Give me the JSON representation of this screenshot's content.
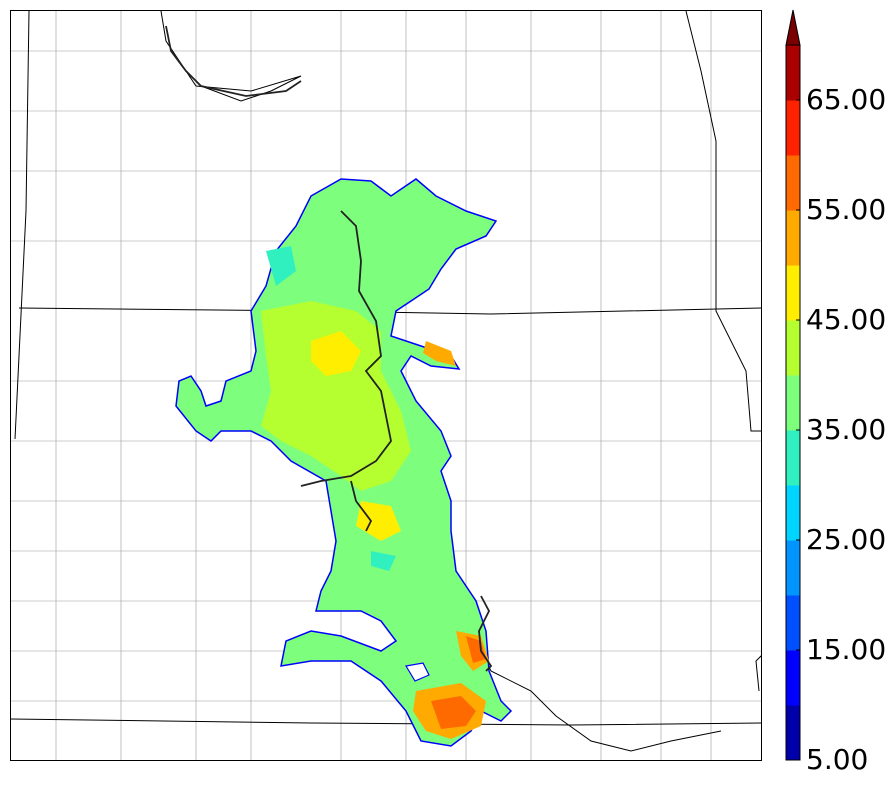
{
  "map": {
    "type": "filled-contour",
    "colorbar": {
      "tick_labels": [
        "5.00",
        "15.00",
        "25.00",
        "35.00",
        "45.00",
        "55.00",
        "65.00"
      ],
      "levels": [
        5,
        10,
        15,
        20,
        25,
        30,
        35,
        40,
        45,
        50,
        55,
        60,
        65,
        70
      ],
      "colors": [
        "#0000aa",
        "#0000ff",
        "#0050ff",
        "#0095ff",
        "#00d5ff",
        "#30f0c0",
        "#7dff7d",
        "#b5ff30",
        "#ffee00",
        "#ffaa00",
        "#ff6a00",
        "#ff2200",
        "#aa0000"
      ],
      "extend": "max"
    }
  }
}
